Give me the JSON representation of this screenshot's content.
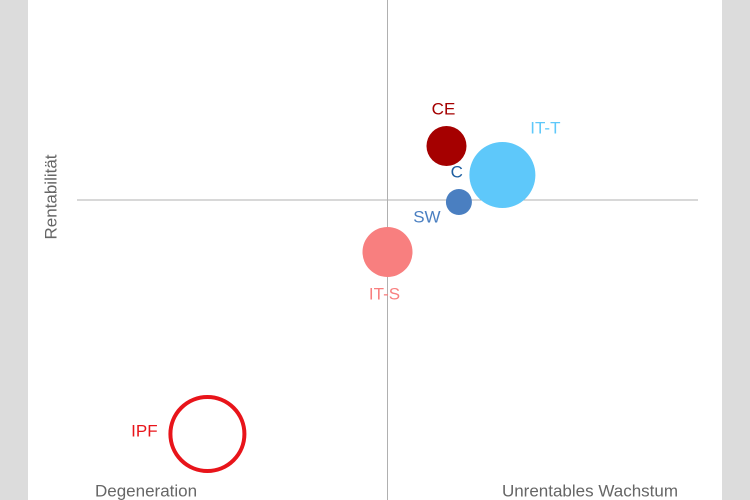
{
  "chart_data": {
    "type": "scatter",
    "y_label": "Rentabilität",
    "annotations": [
      "Degeneration",
      "Unrentables Wachstum"
    ],
    "xlim": [
      -1,
      1
    ],
    "ylim": [
      -1.5,
      1
    ],
    "quadrant_lines": true,
    "series": [
      {
        "name": "CE",
        "color": "#a50000",
        "x": 0.19,
        "y": 0.27,
        "size": 20,
        "hollow": false
      },
      {
        "name": "C",
        "color": "#1f5fa0",
        "x": 0.31,
        "y": 0.115,
        "size": 12,
        "hollow": false
      },
      {
        "name": "IT-T",
        "color": "#5ec8fa",
        "x": 0.37,
        "y": 0.125,
        "size": 33,
        "hollow": false
      },
      {
        "name": "SW",
        "color": "#4a7fc1",
        "x": 0.23,
        "y": -0.01,
        "size": 13,
        "hollow": false
      },
      {
        "name": "IT-S",
        "color": "#f87f7f",
        "x": 0.0,
        "y": -0.26,
        "size": 25,
        "hollow": false
      },
      {
        "name": "IPF",
        "color": "#e8141a",
        "x": -0.58,
        "y": -1.17,
        "size": 39,
        "hollow": true
      }
    ]
  }
}
